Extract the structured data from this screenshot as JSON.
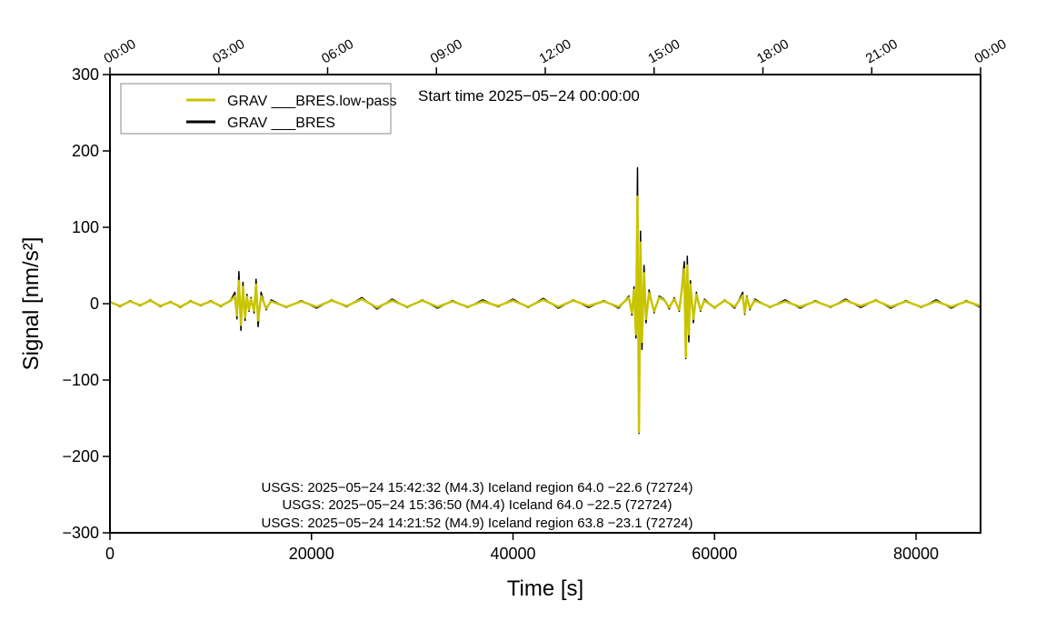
{
  "chart_data": {
    "type": "line",
    "xlabel": "Time [s]",
    "ylabel": "Signal [nm/s²]",
    "xlim": [
      0,
      86400
    ],
    "ylim": [
      -300,
      300
    ],
    "xticks": [
      0,
      20000,
      40000,
      60000,
      80000
    ],
    "yticks": [
      {
        "value": -300,
        "label": "−300"
      },
      {
        "value": -200,
        "label": "−200"
      },
      {
        "value": -100,
        "label": "−100"
      },
      0,
      100,
      200,
      300
    ],
    "top_xticks": [
      {
        "value": 0,
        "label": "00:00"
      },
      {
        "value": 10800,
        "label": "03:00"
      },
      {
        "value": 21600,
        "label": "06:00"
      },
      {
        "value": 32400,
        "label": "09:00"
      },
      {
        "value": 43200,
        "label": "12:00"
      },
      {
        "value": 54000,
        "label": "15:00"
      },
      {
        "value": 64800,
        "label": "18:00"
      },
      {
        "value": 75600,
        "label": "21:00"
      },
      {
        "value": 86400,
        "label": "00:00"
      }
    ],
    "legend": "upper left",
    "annotations": [
      "Start time 2025−05−24 00:00:00",
      "USGS: 2025−05−24 15:42:32 (M4.3) Iceland region 64.0 −22.6 (72724)",
      "USGS: 2025−05−24 15:36:50 (M4.4) Iceland 64.0 −22.5 (72724)",
      "USGS: 2025−05−24 14:21:52 (M4.9) Iceland region 63.8 −23.1 (72724)"
    ],
    "x": [
      0,
      1000,
      2000,
      3000,
      4000,
      5000,
      6000,
      7000,
      8000,
      9000,
      10000,
      11000,
      12000,
      12400,
      12600,
      12800,
      13000,
      13200,
      13400,
      13600,
      13800,
      14000,
      14300,
      14500,
      14700,
      15000,
      15500,
      16000,
      17500,
      19000,
      20500,
      22000,
      23500,
      25000,
      26500,
      28000,
      29500,
      31000,
      32500,
      34000,
      35500,
      37000,
      38500,
      40000,
      41500,
      43000,
      44500,
      46000,
      47500,
      49000,
      50500,
      51500,
      51800,
      52000,
      52200,
      52350,
      52500,
      52650,
      52800,
      53000,
      53200,
      53500,
      54000,
      54500,
      55000,
      55500,
      56000,
      56500,
      57000,
      57150,
      57300,
      57450,
      57600,
      57900,
      58200,
      58600,
      59000,
      60000,
      61000,
      62000,
      62800,
      63000,
      63200,
      63500,
      64000,
      65500,
      67000,
      68500,
      70000,
      71500,
      73000,
      74500,
      76000,
      77500,
      79000,
      80500,
      82000,
      83500,
      85000,
      86400
    ],
    "series": [
      {
        "name": "GRAV ___BRES",
        "color": "#000000",
        "values": [
          3,
          -4,
          4,
          -3,
          5,
          -4,
          3,
          -5,
          4,
          -3,
          4,
          -4,
          5,
          15,
          -20,
          42,
          -35,
          28,
          -22,
          12,
          -10,
          8,
          -12,
          32,
          -30,
          15,
          -8,
          5,
          -5,
          4,
          -6,
          5,
          -4,
          8,
          -7,
          6,
          -5,
          5,
          -6,
          4,
          -5,
          5,
          -4,
          6,
          -5,
          7,
          -6,
          5,
          -5,
          4,
          -6,
          10,
          -15,
          22,
          -45,
          178,
          -170,
          95,
          -60,
          50,
          -25,
          18,
          -12,
          10,
          6,
          -7,
          8,
          -10,
          55,
          -72,
          62,
          -50,
          30,
          -25,
          15,
          -10,
          6,
          -6,
          5,
          -6,
          15,
          -14,
          10,
          -8,
          6,
          -5,
          5,
          -6,
          4,
          -5,
          6,
          -5,
          5,
          -6,
          4,
          -5,
          5,
          -6,
          4,
          -5
        ]
      },
      {
        "name": "GRAV ___BRES.low-pass",
        "color": "#c8c400",
        "values": [
          2,
          -3,
          3,
          -2,
          4,
          -3,
          2,
          -4,
          3,
          -2,
          3,
          -3,
          4,
          10,
          -15,
          30,
          -28,
          22,
          -18,
          9,
          -8,
          6,
          -9,
          25,
          -22,
          10,
          -6,
          3,
          -4,
          3,
          -4,
          4,
          -3,
          6,
          -5,
          4,
          -4,
          4,
          -4,
          3,
          -4,
          3,
          -3,
          4,
          -4,
          5,
          -4,
          4,
          -3,
          3,
          -4,
          8,
          -12,
          18,
          -40,
          140,
          -168,
          80,
          -50,
          40,
          -20,
          14,
          -10,
          8,
          5,
          -5,
          6,
          -8,
          45,
          -70,
          50,
          -40,
          25,
          -20,
          12,
          -8,
          4,
          -5,
          4,
          -4,
          11,
          -12,
          8,
          -6,
          4,
          -4,
          3,
          -4,
          3,
          -4,
          4,
          -3,
          4,
          -4,
          3,
          -4,
          3,
          -4,
          3,
          -3
        ]
      }
    ]
  }
}
